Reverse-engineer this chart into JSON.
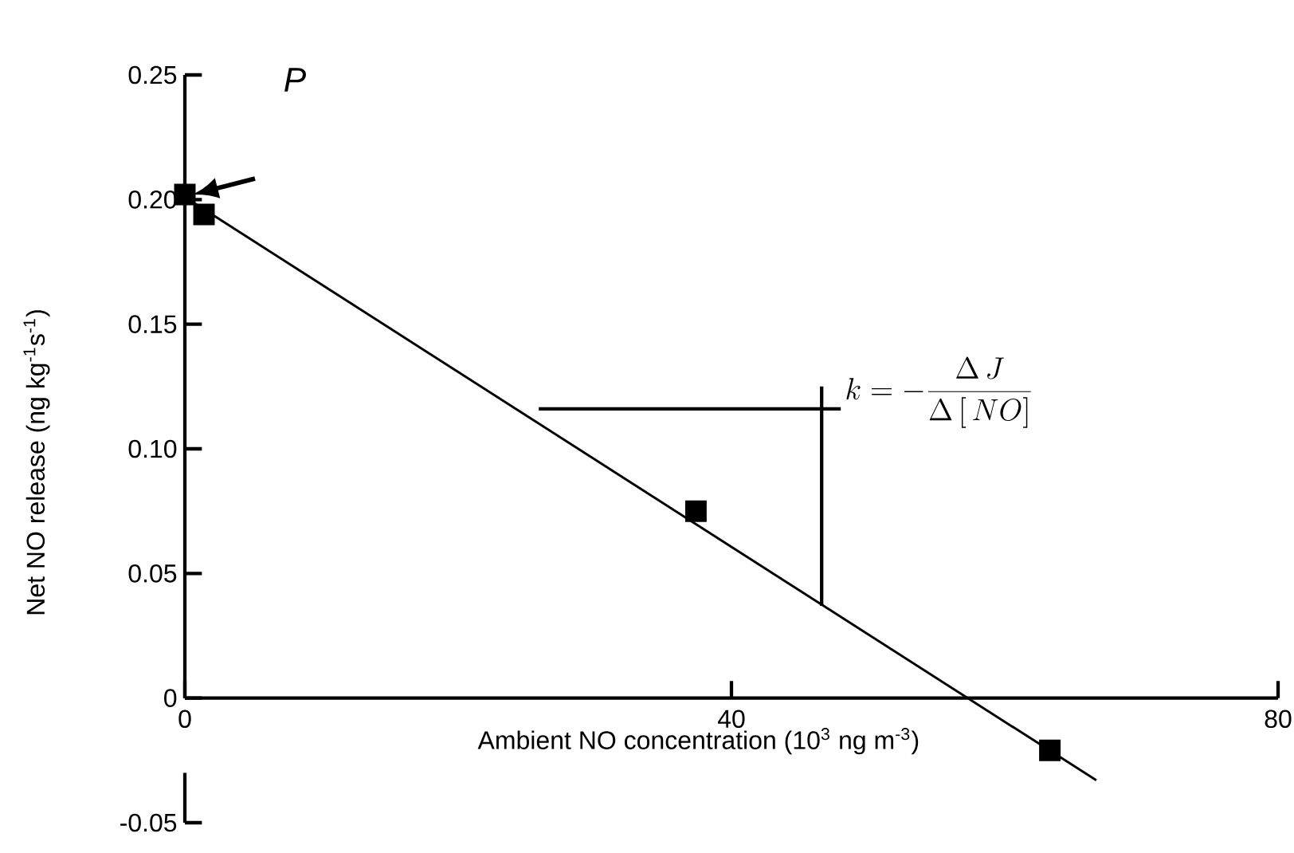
{
  "chart_data": {
    "type": "scatter",
    "xlabel": "Ambient NO concentration (10$^{3}$ ng m$^{-3}$)",
    "ylabel": "Net NO release (ng kg$^{-1}$s$^{-1}$)",
    "xlim": [
      0,
      80
    ],
    "ylim": [
      -0.05,
      0.25
    ],
    "xticks": [
      0,
      40,
      80
    ],
    "yticks": [
      {
        "value": -0.05,
        "label": "-0.05"
      },
      0,
      {
        "value": 0.05,
        "label": "0.05"
      },
      {
        "value": 0.1,
        "label": "0.10"
      },
      {
        "value": 0.15,
        "label": "0.15"
      },
      {
        "value": 0.2,
        "label": "0.20"
      },
      {
        "value": 0.25,
        "label": "0.25"
      }
    ],
    "marker": "square",
    "grid": false,
    "series": [
      {
        "color": "#000000",
        "x": [
          0,
          1.4,
          37.4,
          63.3
        ],
        "values": [
          0.202,
          0.194,
          0.075,
          -0.021
        ]
      },
      {
        "type": "line",
        "color": "#000000",
        "marker": "none",
        "x": [
          0,
          66.7
        ],
        "values": [
          0.201,
          -0.033
        ]
      },
      {
        "type": "line",
        "color": "#000000",
        "marker": "none",
        "x": [
          25.9,
          48
        ],
        "values": [
          0.116,
          0.116
        ]
      },
      {
        "type": "line",
        "color": "#000000",
        "marker": "none",
        "x": [
          46.6,
          46.6
        ],
        "values": [
          0.125,
          0.037
        ]
      }
    ],
    "annotations": [
      "P",
      "k = -\\frac{\\Delta \\, J}{\\Delta \\, [\\, NO]}"
    ]
  }
}
